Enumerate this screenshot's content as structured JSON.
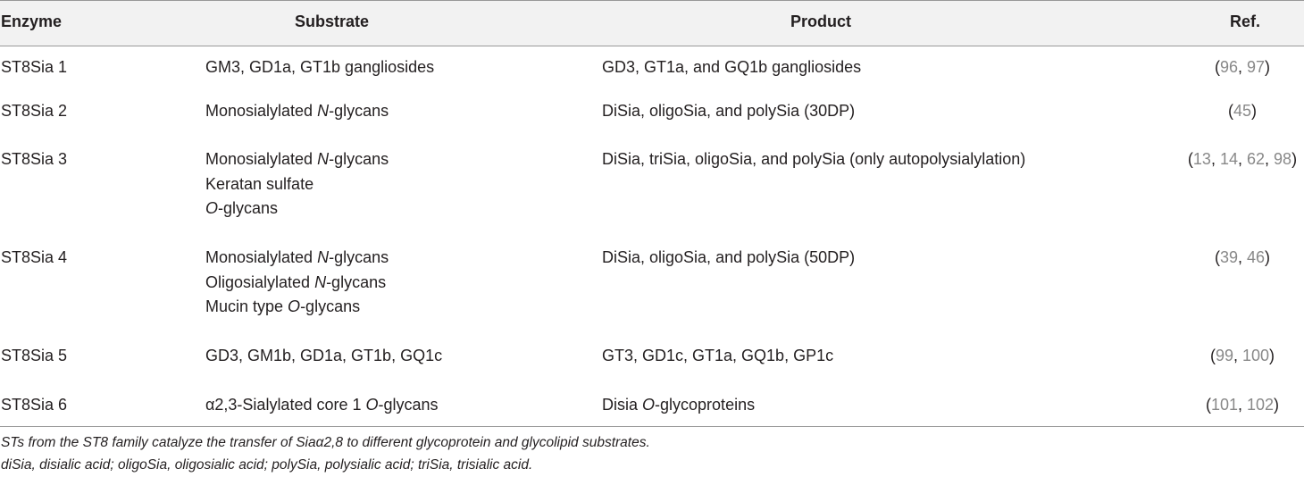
{
  "table": {
    "headers": {
      "enzyme": "Enzyme",
      "substrate": "Substrate",
      "product": "Product",
      "ref": "Ref."
    },
    "rows": [
      {
        "enzyme": "ST8Sia 1",
        "substrate": [
          "GM3, GD1a, GT1b gangliosides"
        ],
        "product": "GD3, GT1a, and GQ1b gangliosides",
        "refs": [
          "96",
          "97"
        ]
      },
      {
        "enzyme": "ST8Sia 2",
        "substrate": [
          "Monosialylated N-glycans"
        ],
        "product": "DiSia, oligoSia, and polySia (30DP)",
        "refs": [
          "45"
        ]
      },
      {
        "enzyme": "ST8Sia 3",
        "substrate": [
          "Monosialylated N-glycans",
          "Keratan sulfate",
          "O-glycans"
        ],
        "product": "DiSia, triSia, oligoSia, and polySia (only autopolysialylation)",
        "refs": [
          "13",
          "14",
          "62",
          "98"
        ]
      },
      {
        "enzyme": "ST8Sia 4",
        "substrate": [
          "Monosialylated N-glycans",
          "Oligosialylated N-glycans",
          "Mucin type O-glycans"
        ],
        "product": "DiSia, oligoSia, and polySia (50DP)",
        "refs": [
          "39",
          "46"
        ]
      },
      {
        "enzyme": "ST8Sia 5",
        "substrate": [
          "GD3, GM1b, GD1a, GT1b, GQ1c"
        ],
        "product": "GT3, GD1c, GT1a, GQ1b, GP1c",
        "refs": [
          "99",
          "100"
        ]
      },
      {
        "enzyme": "ST8Sia 6",
        "substrate": [
          "α2,3-Sialylated core 1 O-glycans"
        ],
        "product": "Disia O-glycoproteins",
        "refs": [
          "101",
          "102"
        ]
      }
    ]
  },
  "footnotes": [
    "STs from the ST8 family catalyze the transfer of Siaα2,8 to different glycoprotein and glycolipid substrates.",
    "diSia, disialic acid; oligoSia, oligosialic acid; polySia, polysialic acid; triSia, trisialic acid."
  ],
  "colors": {
    "header_bg": "#f2f2f2",
    "rule": "#999999",
    "text": "#231f20",
    "ref_number": "#888888"
  }
}
